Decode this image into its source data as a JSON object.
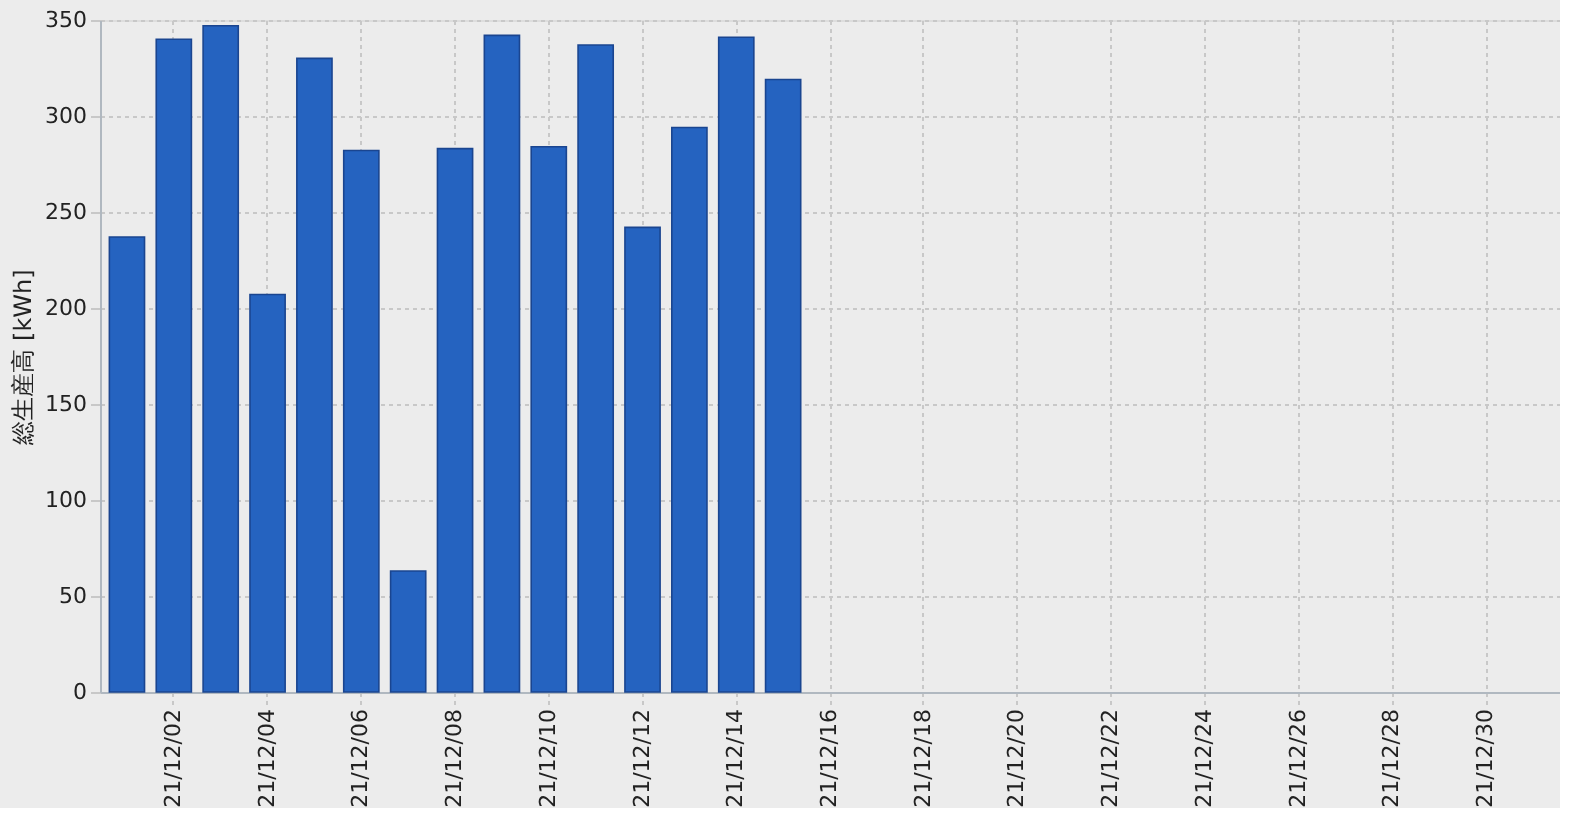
{
  "chart_data": {
    "type": "bar",
    "ylabel": "総生産高 [kWh]",
    "categories": [
      null,
      "21/12/02",
      null,
      "21/12/04",
      null,
      "21/12/06",
      null,
      "21/12/08",
      null,
      "21/12/10",
      null,
      "21/12/12",
      null,
      "21/12/14",
      null,
      "21/12/16",
      null,
      "21/12/18",
      null,
      "21/12/20",
      null,
      "21/12/22",
      null,
      "21/12/24",
      null,
      "21/12/26",
      null,
      "21/12/28",
      null,
      "21/12/30",
      null
    ],
    "values": [
      237,
      340,
      347,
      207,
      330,
      282,
      63,
      283,
      342,
      284,
      337,
      242,
      294,
      341,
      319,
      null,
      null,
      null,
      null,
      null,
      null,
      null,
      null,
      null,
      null,
      null,
      null,
      null,
      null,
      null,
      null
    ],
    "color": "#2563c0",
    "ylim": [
      0,
      350
    ],
    "yticks": [
      0,
      50,
      100,
      150,
      200,
      250,
      300,
      350
    ],
    "grid": true
  }
}
